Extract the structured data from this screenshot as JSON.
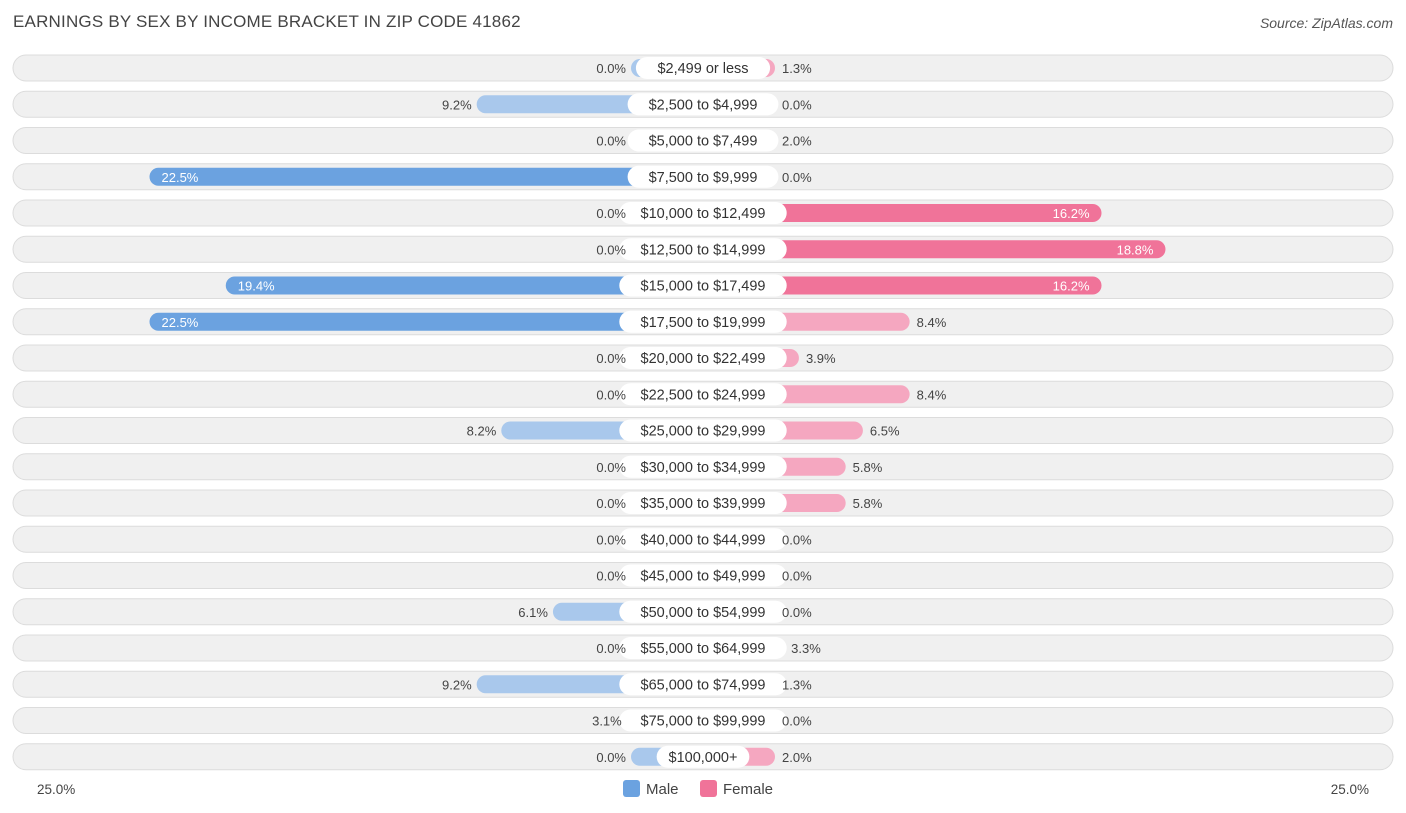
{
  "title": "EARNINGS BY SEX BY INCOME BRACKET IN ZIP CODE 41862",
  "source": "Source: ZipAtlas.com",
  "colors": {
    "male": "#6ba2e0",
    "male_light": "#a9c8ec",
    "female": "#f07399",
    "female_light": "#f5a7c0",
    "row_bg": "#f0f0f0",
    "row_border": "#dcdcdc"
  },
  "chart_data": {
    "type": "bar",
    "orientation": "horizontal-diverging",
    "title": "EARNINGS BY SEX BY INCOME BRACKET IN ZIP CODE 41862",
    "categories": [
      "$2,499 or less",
      "$2,500 to $4,999",
      "$5,000 to $7,499",
      "$7,500 to $9,999",
      "$10,000 to $12,499",
      "$12,500 to $14,999",
      "$15,000 to $17,499",
      "$17,500 to $19,999",
      "$20,000 to $22,499",
      "$22,500 to $24,999",
      "$25,000 to $29,999",
      "$30,000 to $34,999",
      "$35,000 to $39,999",
      "$40,000 to $44,999",
      "$45,000 to $49,999",
      "$50,000 to $54,999",
      "$55,000 to $64,999",
      "$65,000 to $74,999",
      "$75,000 to $99,999",
      "$100,000+"
    ],
    "series": [
      {
        "name": "Male",
        "values": [
          0.0,
          9.2,
          0.0,
          22.5,
          0.0,
          0.0,
          19.4,
          22.5,
          0.0,
          0.0,
          8.2,
          0.0,
          0.0,
          0.0,
          0.0,
          6.1,
          0.0,
          9.2,
          3.1,
          0.0
        ],
        "labels": [
          "0.0%",
          "9.2%",
          "0.0%",
          "22.5%",
          "0.0%",
          "0.0%",
          "19.4%",
          "22.5%",
          "0.0%",
          "0.0%",
          "8.2%",
          "0.0%",
          "0.0%",
          "0.0%",
          "0.0%",
          "6.1%",
          "0.0%",
          "9.2%",
          "3.1%",
          "0.0%"
        ]
      },
      {
        "name": "Female",
        "values": [
          1.3,
          0.0,
          2.0,
          0.0,
          16.2,
          18.8,
          16.2,
          8.4,
          3.9,
          8.4,
          6.5,
          5.8,
          5.8,
          0.0,
          0.0,
          0.0,
          3.3,
          1.3,
          0.0,
          2.0
        ],
        "labels": [
          "1.3%",
          "0.0%",
          "2.0%",
          "0.0%",
          "16.2%",
          "18.8%",
          "16.2%",
          "8.4%",
          "3.9%",
          "8.4%",
          "6.5%",
          "5.8%",
          "5.8%",
          "0.0%",
          "0.0%",
          "0.0%",
          "3.3%",
          "1.3%",
          "0.0%",
          "2.0%"
        ]
      }
    ],
    "xlim": [
      -25.0,
      25.0
    ],
    "axis_labels": {
      "left": "25.0%",
      "right": "25.0%"
    },
    "legend": {
      "items": [
        "Male",
        "Female"
      ],
      "placement": "bottom-center"
    },
    "grid": false
  }
}
